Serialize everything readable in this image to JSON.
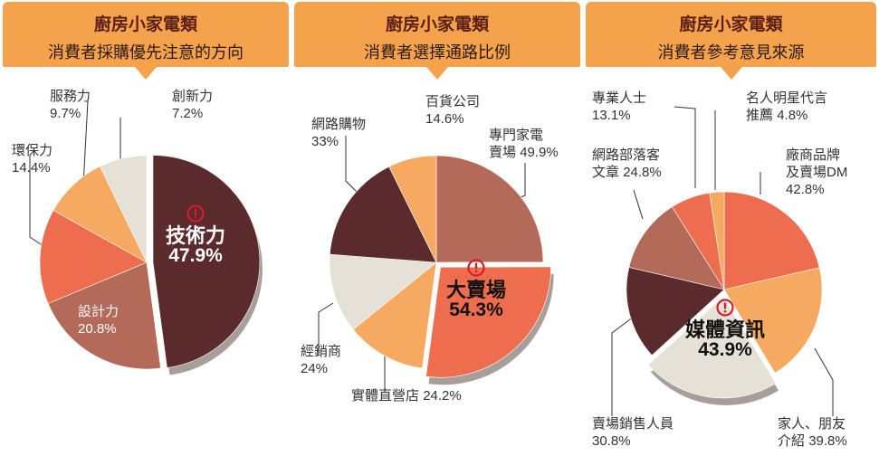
{
  "chart_data": [
    {
      "type": "pie",
      "title": "廚房小家電類",
      "subtitle": "消費者採購優先注意的方向",
      "series": [
        {
          "label": "技術力",
          "value": 47.9,
          "display": "47.9%",
          "color": "#5a2a2c",
          "highlight": true
        },
        {
          "label": "設計力",
          "value": 20.8,
          "display": "20.8%",
          "color": "#b36a59"
        },
        {
          "label": "環保力",
          "value": 14.4,
          "display": "14.4%",
          "color": "#ee6d4e"
        },
        {
          "label": "服務力",
          "value": 9.7,
          "display": "9.7%",
          "color": "#f6a960"
        },
        {
          "label": "創新力",
          "value": 7.2,
          "display": "7.2%",
          "color": "#e6e1d7"
        }
      ]
    },
    {
      "type": "pie",
      "title": "廚房小家電類",
      "subtitle": "消費者選擇通路比例",
      "series": [
        {
          "label": "專門家電賣場",
          "value": 49.9,
          "display": "49.9%",
          "color": "#b36a59"
        },
        {
          "label": "大賣場",
          "value": 54.3,
          "display": "54.3%",
          "color": "#ee6d4e",
          "highlight": true
        },
        {
          "label": "實體直營店",
          "value": 24.2,
          "display": "24.2%",
          "color": "#f6a960"
        },
        {
          "label": "經銷商",
          "value": 24,
          "display": "24%",
          "color": "#e6e1d7"
        },
        {
          "label": "網路購物",
          "value": 33,
          "display": "33%",
          "color": "#5a2a2c"
        },
        {
          "label": "百貨公司",
          "value": 14.6,
          "display": "14.6%",
          "color": "#f6a960"
        }
      ]
    },
    {
      "type": "pie",
      "title": "廚房小家電類",
      "subtitle": "消費者參考意見來源",
      "series": [
        {
          "label": "廠商品牌及賣場DM",
          "value": 42.8,
          "display": "42.8%",
          "color": "#ee6d4e"
        },
        {
          "label": "家人、朋友介紹",
          "value": 39.8,
          "display": "39.8%",
          "color": "#f6a960"
        },
        {
          "label": "媒體資訊",
          "value": 43.9,
          "display": "43.9%",
          "color": "#e6e1d7",
          "highlight": true
        },
        {
          "label": "賣場銷售人員",
          "value": 30.8,
          "display": "30.8%",
          "color": "#5a2a2c"
        },
        {
          "label": "網路部落客文章",
          "value": 24.8,
          "display": "24.8%",
          "color": "#b36a59"
        },
        {
          "label": "專業人士",
          "value": 13.1,
          "display": "13.1%",
          "color": "#ee6d4e"
        },
        {
          "label": "名人明星代言推薦",
          "value": 4.8,
          "display": "4.8%",
          "color": "#f6a960"
        }
      ]
    }
  ],
  "icons": {
    "highlight": "exclamation-circle-icon"
  },
  "colors": {
    "header": "#f5a24c",
    "highlight_icon": "#d11f2e"
  }
}
